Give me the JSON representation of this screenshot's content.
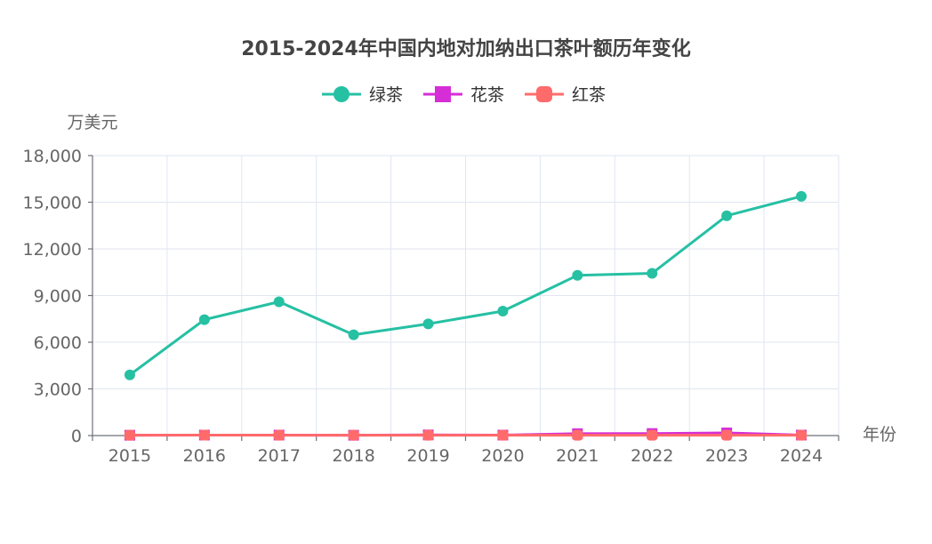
{
  "chart_data": {
    "type": "line",
    "title": "2015-2024年中国内地对加纳出口茶叶额历年变化",
    "xlabel": "年份",
    "ylabel": "万美元",
    "categories": [
      "2015",
      "2016",
      "2017",
      "2018",
      "2019",
      "2020",
      "2021",
      "2022",
      "2023",
      "2024"
    ],
    "ylim": [
      0,
      18000
    ],
    "yticks": [
      0,
      3000,
      6000,
      9000,
      12000,
      15000,
      18000
    ],
    "ytick_labels": [
      "0",
      "3,000",
      "6,000",
      "9,000",
      "12,000",
      "15,000",
      "18,000"
    ],
    "grid": true,
    "legend_position": "top-center",
    "series": [
      {
        "name": "绿茶",
        "color": "#26c0a3",
        "marker": "circle",
        "values": [
          3900,
          7450,
          8600,
          6480,
          7180,
          8000,
          10300,
          10430,
          14130,
          15380
        ]
      },
      {
        "name": "花茶",
        "color": "#d62ed6",
        "marker": "square",
        "values": [
          20,
          30,
          30,
          20,
          40,
          30,
          120,
          130,
          170,
          30
        ]
      },
      {
        "name": "红茶",
        "color": "#ff6b6b",
        "marker": "rounded-square",
        "values": [
          20,
          30,
          20,
          20,
          20,
          20,
          20,
          20,
          20,
          20
        ]
      }
    ]
  }
}
